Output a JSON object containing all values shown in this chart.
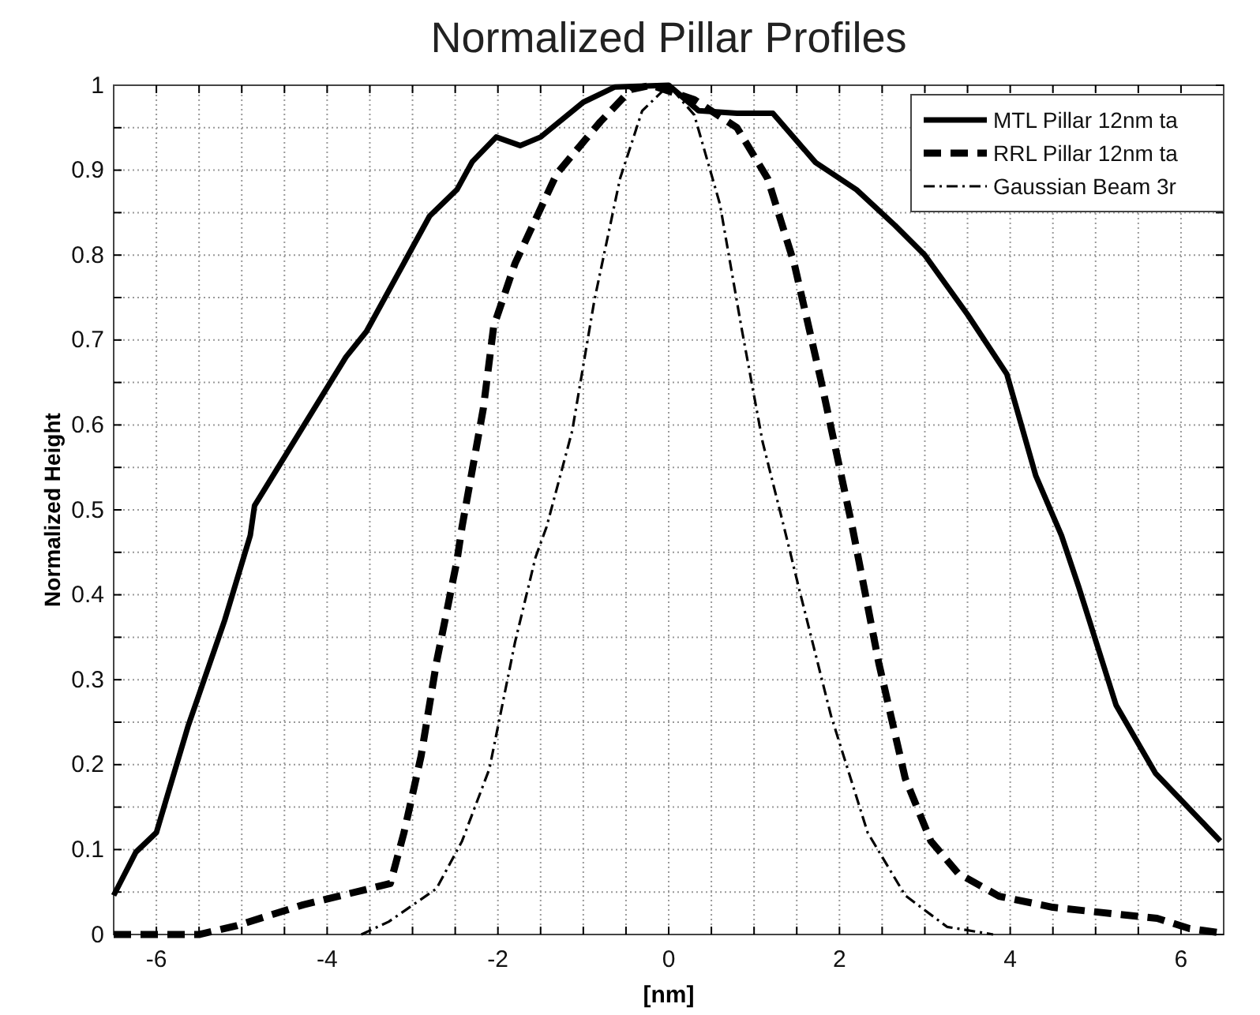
{
  "chart_data": {
    "type": "line",
    "title": "Normalized Pillar Profiles",
    "xlabel": "[nm]",
    "ylabel": "Normalized Height",
    "xlim": [
      -6.5,
      6.5
    ],
    "xticks": [
      {
        "value": -6,
        "label": "-6"
      },
      {
        "value": -5.5,
        "label": null
      },
      {
        "value": -5,
        "label": null
      },
      {
        "value": -4.5,
        "label": null
      },
      {
        "value": -4,
        "label": "-4"
      },
      {
        "value": -3.5,
        "label": null
      },
      {
        "value": -3,
        "label": null
      },
      {
        "value": -2.5,
        "label": null
      },
      {
        "value": -2,
        "label": "-2"
      },
      {
        "value": -1.5,
        "label": null
      },
      {
        "value": -1,
        "label": null
      },
      {
        "value": -0.5,
        "label": null
      },
      {
        "value": 0,
        "label": "0"
      },
      {
        "value": 0.5,
        "label": null
      },
      {
        "value": 1,
        "label": null
      },
      {
        "value": 1.5,
        "label": null
      },
      {
        "value": 2,
        "label": "2"
      },
      {
        "value": 2.5,
        "label": null
      },
      {
        "value": 3,
        "label": null
      },
      {
        "value": 3.5,
        "label": null
      },
      {
        "value": 4,
        "label": "4"
      },
      {
        "value": 4.5,
        "label": null
      },
      {
        "value": 5,
        "label": null
      },
      {
        "value": 5.5,
        "label": null
      },
      {
        "value": 6,
        "label": "6"
      }
    ],
    "ylim": [
      0,
      1
    ],
    "yticks": [
      0,
      {
        "value": 0.05,
        "label": null
      },
      0.1,
      {
        "value": 0.15,
        "label": null
      },
      0.2,
      {
        "value": 0.25,
        "label": null
      },
      0.3,
      {
        "value": 0.35,
        "label": null
      },
      0.4,
      {
        "value": 0.45,
        "label": null
      },
      0.5,
      {
        "value": 0.55,
        "label": null
      },
      0.6,
      {
        "value": 0.65,
        "label": null
      },
      0.7,
      {
        "value": 0.75,
        "label": null
      },
      0.8,
      {
        "value": 0.85,
        "label": null
      },
      0.9,
      {
        "value": 0.95,
        "label": null
      },
      1
    ],
    "grid": true,
    "legend": "top right",
    "series": [
      {
        "name": "MTL Pillar 12nm ta",
        "color": "#000000",
        "line_style": "solid",
        "x": [
          -6.5,
          -6.24,
          -6.0,
          -5.63,
          -5.2,
          -4.9,
          -4.85,
          -3.78,
          -3.54,
          -2.8,
          -2.48,
          -2.3,
          -2.02,
          -1.74,
          -1.5,
          -1.0,
          -0.63,
          0,
          0.35,
          0.8,
          1.22,
          1.72,
          2.2,
          2.65,
          3.0,
          3.5,
          3.96,
          4.3,
          4.6,
          4.8,
          5.24,
          5.7,
          6.46
        ],
        "values": [
          0.046,
          0.097,
          0.12,
          0.245,
          0.37,
          0.47,
          0.505,
          0.68,
          0.71,
          0.846,
          0.877,
          0.91,
          0.939,
          0.929,
          0.939,
          0.98,
          0.998,
          1.0,
          0.97,
          0.967,
          0.967,
          0.909,
          0.877,
          0.835,
          0.8,
          0.73,
          0.66,
          0.54,
          0.47,
          0.41,
          0.27,
          0.19,
          0.11
        ]
      },
      {
        "name": "RRL Pillar 12nm ta",
        "color": "#000000",
        "line_style": "dashed",
        "x": [
          -6.5,
          -5.5,
          -5.07,
          -4.28,
          -3.26,
          -3.1,
          -2.9,
          -2.72,
          -2.48,
          -2.42,
          -2.17,
          -2.05,
          -1.8,
          -1.31,
          -0.8,
          -0.44,
          -0.2,
          0.3,
          0.8,
          1.16,
          1.47,
          1.78,
          2.15,
          2.46,
          2.77,
          3.07,
          3.39,
          3.87,
          4.5,
          5.43,
          5.72,
          6.1,
          6.46
        ],
        "values": [
          0.0,
          0.0,
          0.01,
          0.035,
          0.06,
          0.12,
          0.21,
          0.32,
          0.44,
          0.48,
          0.62,
          0.716,
          0.79,
          0.896,
          0.957,
          0.995,
          1.0,
          0.983,
          0.95,
          0.89,
          0.79,
          0.654,
          0.48,
          0.32,
          0.184,
          0.11,
          0.072,
          0.045,
          0.032,
          0.022,
          0.019,
          0.007,
          0.002
        ]
      },
      {
        "name": "Gaussian Beam 3r",
        "color": "#000000",
        "line_style": "dashdot",
        "x": [
          -3.6,
          -3.28,
          -2.72,
          -2.42,
          -2.1,
          -1.8,
          -1.56,
          -1.43,
          -1.13,
          -0.87,
          -0.57,
          -0.31,
          0,
          0.3,
          0.6,
          0.85,
          1.1,
          1.35,
          1.53,
          1.9,
          2.33,
          2.77,
          3.26,
          3.8
        ],
        "values": [
          0,
          0.015,
          0.054,
          0.11,
          0.195,
          0.344,
          0.444,
          0.48,
          0.593,
          0.747,
          0.89,
          0.97,
          1.0,
          0.965,
          0.86,
          0.716,
          0.58,
          0.48,
          0.406,
          0.258,
          0.12,
          0.046,
          0.009,
          0
        ]
      }
    ]
  }
}
